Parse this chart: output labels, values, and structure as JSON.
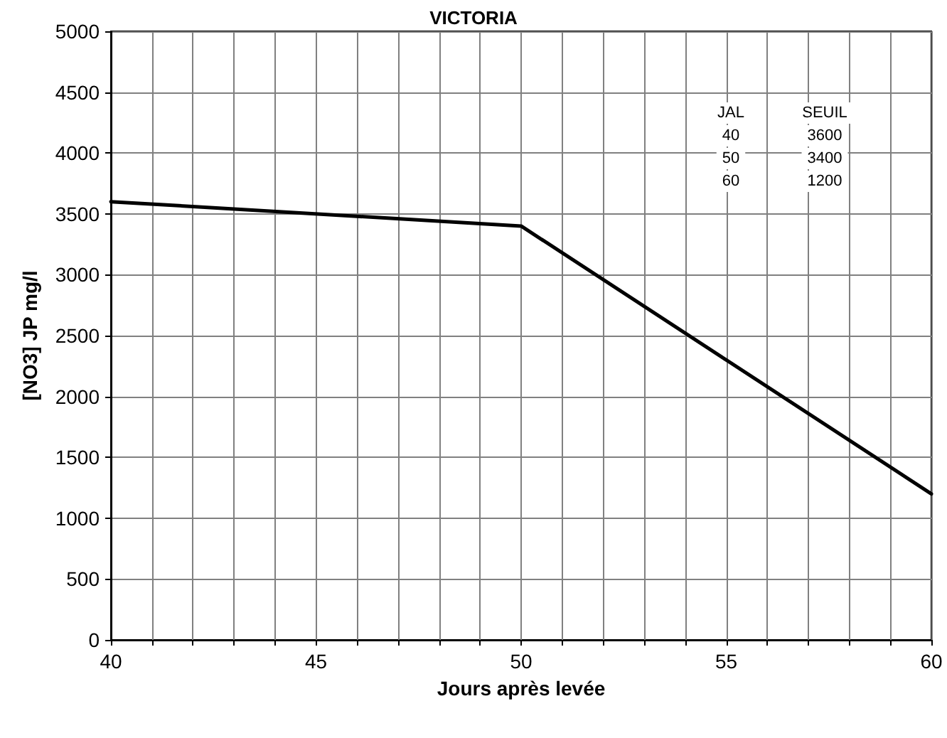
{
  "chart_data": {
    "type": "line",
    "title": "VICTORIA",
    "xlabel": "Jours après levée",
    "ylabel": "[NO3] JP mg/l",
    "x": [
      40,
      50,
      60
    ],
    "series": [
      {
        "color": "#000000",
        "values": [
          3600,
          3400,
          1200
        ]
      }
    ],
    "xlim": [
      40,
      60
    ],
    "xticks": [
      40,
      {
        "value": 41,
        "label": null
      },
      {
        "value": 42,
        "label": null
      },
      {
        "value": 43,
        "label": null
      },
      {
        "value": 44,
        "label": null
      },
      45,
      {
        "value": 46,
        "label": null
      },
      {
        "value": 47,
        "label": null
      },
      {
        "value": 48,
        "label": null
      },
      {
        "value": 49,
        "label": null
      },
      50,
      {
        "value": 51,
        "label": null
      },
      {
        "value": 52,
        "label": null
      },
      {
        "value": 53,
        "label": null
      },
      {
        "value": 54,
        "label": null
      },
      55,
      {
        "value": 56,
        "label": null
      },
      {
        "value": 57,
        "label": null
      },
      {
        "value": 58,
        "label": null
      },
      {
        "value": 59,
        "label": null
      },
      60
    ],
    "ylim": [
      0,
      5000
    ],
    "yticks": [
      0,
      500,
      1000,
      1500,
      2000,
      2500,
      3000,
      3500,
      4000,
      4500,
      5000
    ],
    "grid": true,
    "marker": "none",
    "line_style": "solid",
    "annotations": [
      "JAL",
      "SEUIL",
      "40",
      "3600",
      "50",
      "3400",
      "60",
      "1200"
    ]
  }
}
